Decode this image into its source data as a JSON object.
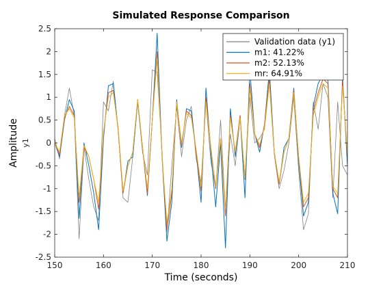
{
  "chart_data": {
    "type": "line",
    "title": "Simulated Response Comparison",
    "xlabel": "Time (seconds)",
    "ylabel": "Amplitude",
    "ylabel_channel": "y1",
    "xlim": [
      150,
      210
    ],
    "ylim": [
      -2.5,
      2.5
    ],
    "xticks": [
      150,
      160,
      170,
      180,
      190,
      200,
      210
    ],
    "yticks": [
      -2.5,
      -2,
      -1.5,
      -1,
      -0.5,
      0,
      0.5,
      1,
      1.5,
      2,
      2.5
    ],
    "ytick_labels": [
      "-2.5",
      "-2",
      "-1.5",
      "-1",
      "-0.5",
      "0",
      "0.5",
      "1",
      "1.5",
      "2",
      "2.5"
    ],
    "grid": false,
    "legend_position": "top-right",
    "x": [
      150,
      151,
      152,
      153,
      154,
      155,
      156,
      157,
      158,
      159,
      160,
      161,
      162,
      163,
      164,
      165,
      166,
      167,
      168,
      169,
      170,
      171,
      172,
      173,
      174,
      175,
      176,
      177,
      178,
      179,
      180,
      181,
      182,
      183,
      184,
      185,
      186,
      187,
      188,
      189,
      190,
      191,
      192,
      193,
      194,
      195,
      196,
      197,
      198,
      199,
      200,
      201,
      202,
      203,
      204,
      205,
      206,
      207,
      208,
      209,
      210
    ],
    "series": [
      {
        "name": "Validation data (y1)",
        "color": "#808080",
        "values": [
          0.1,
          -0.35,
          0.6,
          1.2,
          0.6,
          -2.1,
          -0.1,
          -0.8,
          -1.4,
          -1.7,
          0.9,
          0.7,
          1.35,
          0.3,
          -1.2,
          -1.3,
          -0.3,
          0.9,
          -0.2,
          -0.7,
          1.6,
          1.55,
          -0.2,
          -1.95,
          -0.5,
          0.8,
          -0.3,
          0.5,
          0.8,
          -0.35,
          -0.85,
          0.9,
          -0.4,
          -1.0,
          0.5,
          -1.5,
          0.2,
          -0.5,
          0.55,
          -0.8,
          1.0,
          0.0,
          0.1,
          0.3,
          1.3,
          -0.25,
          -1.0,
          -0.6,
          0.0,
          1.0,
          -0.6,
          -1.9,
          -1.55,
          0.9,
          0.3,
          1.3,
          1.0,
          -1.2,
          0.9,
          -0.5,
          -0.7
        ]
      },
      {
        "name": "m1: 41.22%",
        "color": "#0072BD",
        "values": [
          0.0,
          -0.3,
          0.5,
          0.95,
          0.7,
          -1.65,
          0.0,
          -0.5,
          -1.1,
          -1.9,
          0.1,
          1.25,
          1.3,
          0.3,
          -1.1,
          -0.4,
          -0.3,
          0.9,
          -0.1,
          -1.15,
          0.5,
          2.4,
          -0.3,
          -2.15,
          -1.3,
          0.95,
          -0.1,
          0.75,
          0.7,
          -0.2,
          -1.3,
          1.2,
          -0.2,
          -1.4,
          0.0,
          -2.3,
          0.75,
          -0.3,
          0.6,
          -1.2,
          1.6,
          0.2,
          -0.2,
          0.4,
          1.6,
          -0.2,
          -0.9,
          -0.1,
          0.1,
          1.2,
          -0.4,
          -1.6,
          -1.3,
          0.8,
          1.3,
          1.5,
          1.4,
          -1.1,
          -1.55,
          1.45,
          -0.5
        ]
      },
      {
        "name": "m2: 52.13%",
        "color": "#D95319",
        "values": [
          0.0,
          -0.25,
          0.55,
          0.8,
          0.6,
          -1.3,
          -0.1,
          -0.3,
          -0.8,
          -1.45,
          0.2,
          1.1,
          1.15,
          0.3,
          -1.1,
          -0.5,
          -0.2,
          0.95,
          -0.1,
          -1.1,
          0.5,
          2.0,
          -0.3,
          -1.9,
          -1.1,
          0.9,
          -0.05,
          0.7,
          0.6,
          -0.2,
          -1.05,
          1.0,
          -0.1,
          -1.0,
          0.1,
          -1.6,
          0.6,
          -0.2,
          0.6,
          -0.8,
          1.3,
          0.2,
          -0.1,
          0.4,
          1.4,
          -0.2,
          -0.9,
          -0.2,
          0.1,
          1.15,
          -0.3,
          -1.4,
          -1.2,
          0.7,
          1.1,
          1.4,
          1.3,
          -1.0,
          -1.2,
          1.35,
          -0.3
        ]
      },
      {
        "name": "mr: 64.91%",
        "color": "#EDB120",
        "values": [
          0.0,
          -0.2,
          0.6,
          0.75,
          0.55,
          -1.2,
          -0.05,
          -0.3,
          -0.8,
          -1.3,
          0.25,
          1.0,
          1.1,
          0.35,
          -1.05,
          -0.5,
          -0.2,
          0.95,
          -0.1,
          -1.0,
          0.5,
          1.85,
          -0.3,
          -1.75,
          -1.0,
          0.9,
          0.0,
          0.65,
          0.55,
          -0.15,
          -0.95,
          0.9,
          -0.1,
          -0.95,
          0.1,
          -1.45,
          0.55,
          -0.2,
          0.55,
          -0.75,
          1.2,
          0.2,
          -0.05,
          0.35,
          1.3,
          -0.2,
          -0.85,
          -0.2,
          0.1,
          1.1,
          -0.3,
          -1.3,
          -1.1,
          0.6,
          1.0,
          1.3,
          1.2,
          -0.95,
          -1.1,
          1.25,
          -0.25
        ]
      }
    ]
  }
}
